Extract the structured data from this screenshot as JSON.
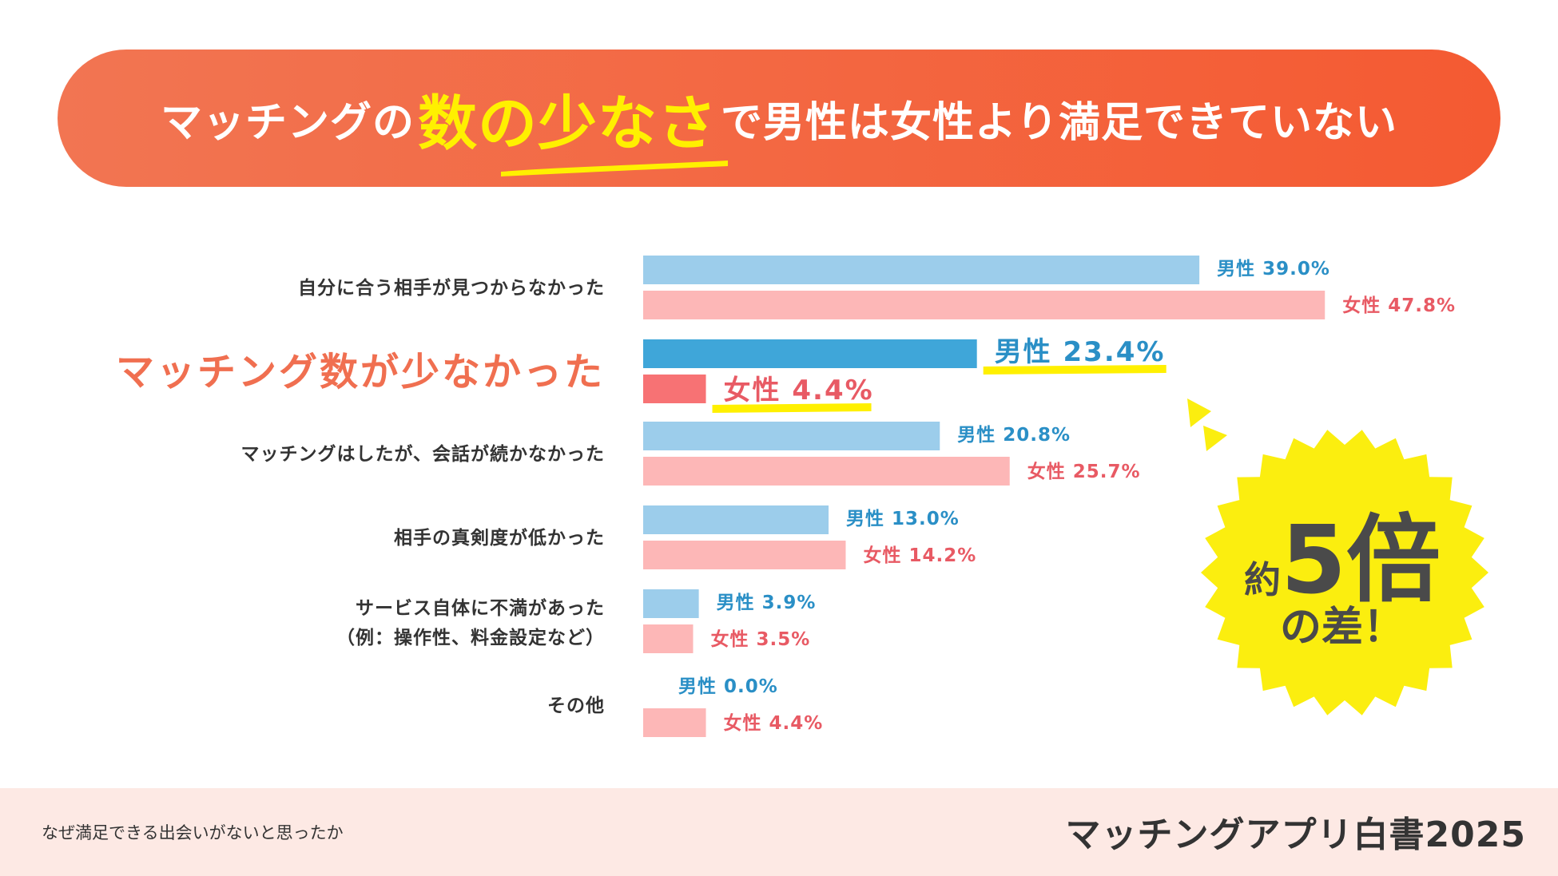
{
  "header": {
    "title_prefix": "マッチングの",
    "title_highlight": "数の少なさ",
    "title_suffix": "で男性は女性より満足できていない"
  },
  "chart_data": {
    "type": "bar",
    "orientation": "horizontal",
    "categories": [
      "自分に合う相手が見つからなかった",
      "マッチング数が少なかった",
      "マッチングはしたが、会話が続かなかった",
      "相手の真剣度が低かった",
      "サービス自体に不満があった\n（例：操作性、料金設定など）",
      "その他"
    ],
    "highlighted_category": "マッチング数が少なかった",
    "series": [
      {
        "name": "男性",
        "values": [
          39.0,
          23.4,
          20.8,
          13.0,
          3.9,
          0.0
        ]
      },
      {
        "name": "女性",
        "values": [
          47.8,
          4.4,
          25.7,
          14.2,
          3.5,
          4.4
        ]
      }
    ],
    "unit": "%",
    "xlim": [
      0,
      50
    ],
    "colors": {
      "male": "#9ccdeb",
      "male_highlight": "#3fa6d9",
      "female": "#fdb7b7",
      "female_highlight": "#f77274",
      "male_text": "#2a8fc6",
      "female_text": "#e85a64"
    }
  },
  "callout": {
    "line1_prefix": "約",
    "line1_big": "5倍",
    "line2": "の差！",
    "color": "#fbee0f"
  },
  "footer": {
    "note": "なぜ満足できる出会いがないと思ったか",
    "brand": "マッチングアプリ白書2025"
  }
}
